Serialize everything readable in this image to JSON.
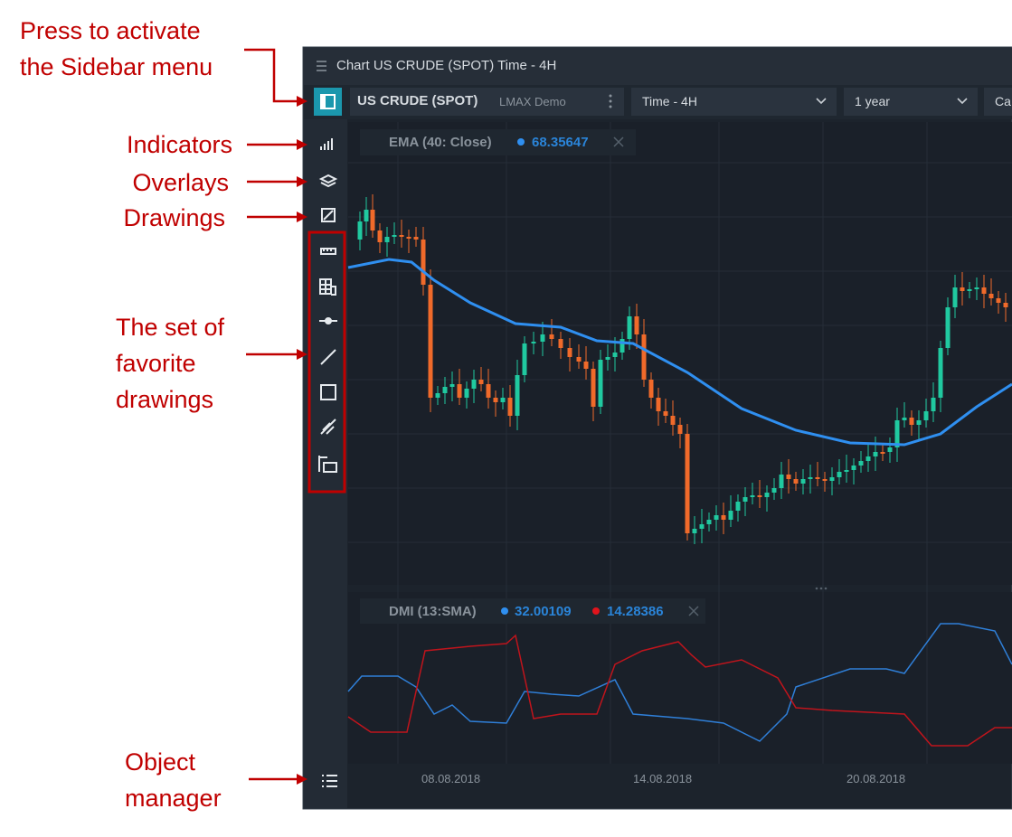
{
  "annotations": {
    "sidebar": "Press to activate\nthe Sidebar menu",
    "indicators": "Indicators",
    "overlays": "Overlays",
    "drawings": "Drawings",
    "favorites": "The set of\nfavorite\ndrawings",
    "object_manager": "Object\nmanager"
  },
  "window": {
    "title": "Chart US CRUDE (SPOT) Time - 4H",
    "symbol": "US CRUDE (SPOT)",
    "broker": "LMAX Demo",
    "timeframe": "Time - 4H",
    "range": "1 year",
    "cut_off": "Ca"
  },
  "main_pane": {
    "indicator": "EMA (40: Close)",
    "value": "68.35647"
  },
  "sub_pane": {
    "indicator": "DMI (13:SMA)",
    "plus_value": "32.00109",
    "minus_value": "14.28386"
  },
  "x_axis": {
    "labels": [
      "08.08.2018",
      "14.08.2018",
      "20.08.2018"
    ]
  }
}
